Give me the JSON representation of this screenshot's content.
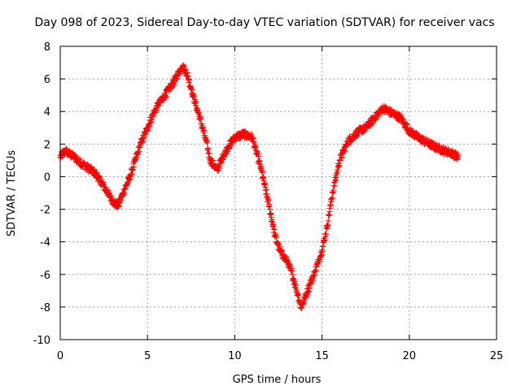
{
  "chart_data": {
    "type": "scatter",
    "title": "Day 098 of 2023, Sidereal Day-to-day VTEC variation (SDTVAR) for receiver vacs",
    "xlabel": "GPS time / hours",
    "ylabel": "SDTVAR / TECUs",
    "xlim": [
      0,
      25
    ],
    "ylim": [
      -10,
      8
    ],
    "xticks": [
      0,
      5,
      10,
      15,
      20,
      25
    ],
    "yticks": [
      -10,
      -8,
      -6,
      -4,
      -2,
      0,
      2,
      4,
      6,
      8
    ],
    "xtick_labels": [
      "0",
      "5",
      "10",
      "15",
      "20",
      "25"
    ],
    "ytick_labels": [
      "-10",
      "-8",
      "-6",
      "-4",
      "-2",
      "0",
      "2",
      "4",
      "6",
      "8"
    ],
    "grid": true,
    "marker": "+",
    "marker_color": "#ff0000",
    "series": [
      {
        "name": "SDTVAR",
        "x": [
          0.0,
          0.3,
          0.5,
          0.8,
          1.0,
          1.5,
          2.0,
          2.5,
          3.0,
          3.3,
          3.6,
          4.0,
          4.3,
          4.6,
          5.0,
          5.3,
          5.6,
          6.0,
          6.5,
          7.0,
          7.3,
          7.6,
          8.0,
          8.3,
          8.6,
          9.0,
          9.3,
          9.6,
          10.0,
          10.5,
          11.0,
          11.5,
          12.0,
          12.3,
          12.6,
          13.0,
          13.3,
          13.6,
          13.8,
          14.0,
          14.3,
          14.6,
          15.0,
          15.3,
          15.6,
          16.0,
          16.5,
          17.0,
          17.5,
          18.0,
          18.5,
          19.0,
          19.5,
          20.0,
          20.5,
          21.0,
          21.5,
          22.0,
          22.5,
          22.8
        ],
        "y": [
          1.2,
          1.6,
          1.4,
          1.2,
          1.0,
          0.6,
          0.2,
          -0.6,
          -1.5,
          -1.8,
          -1.0,
          0.0,
          1.0,
          2.0,
          3.0,
          3.8,
          4.4,
          5.0,
          5.8,
          6.8,
          6.2,
          5.0,
          3.6,
          2.4,
          1.0,
          0.4,
          1.2,
          1.8,
          2.4,
          2.6,
          2.4,
          0.5,
          -2.0,
          -3.6,
          -4.6,
          -5.2,
          -6.0,
          -7.2,
          -8.0,
          -7.5,
          -6.6,
          -5.8,
          -4.5,
          -3.0,
          -1.0,
          1.0,
          2.2,
          2.7,
          3.0,
          3.6,
          4.2,
          3.9,
          3.6,
          2.8,
          2.4,
          2.1,
          1.8,
          1.6,
          1.4,
          1.2
        ]
      }
    ]
  }
}
